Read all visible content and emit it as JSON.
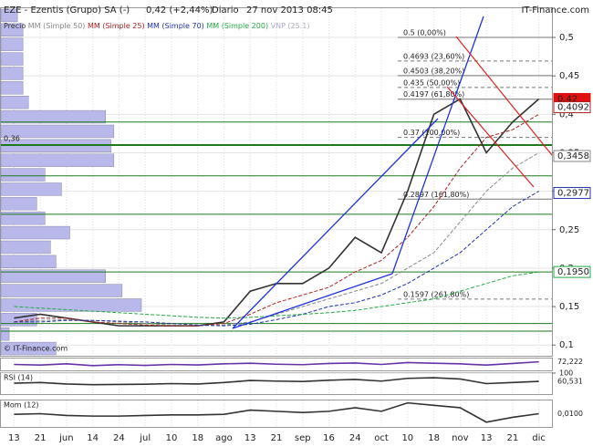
{
  "header": {
    "title": "EZE - Ezentis (Grupo) SA (-)",
    "quote": "0,42 (+2,44%)",
    "period": "Diario",
    "datetime": "27 nov 2013 08:45",
    "site": "IT-Finance.com",
    "copyright": "© IT-Finance.com"
  },
  "chart_data": [
    {
      "type": "line",
      "categories": [
        "13",
        "21",
        "jun",
        "14",
        "24",
        "jul",
        "10",
        "18",
        "ago",
        "13",
        "21",
        "sep",
        "16",
        "24",
        "oct",
        "10",
        "18",
        "nov",
        "13",
        "21",
        "dic"
      ],
      "ylim": [
        0.086,
        0.538
      ],
      "yticks": [
        {
          "value": 0.1,
          "label": "0,1"
        },
        {
          "value": 0.15,
          "label": "0,15"
        },
        {
          "value": 0.2,
          "label": "0,2"
        },
        {
          "value": 0.25,
          "label": "0,25"
        },
        {
          "value": 0.3,
          "label": "0,3"
        },
        {
          "value": 0.35,
          "label": "0,35"
        },
        {
          "value": 0.4,
          "label": "0,4"
        },
        {
          "value": 0.45,
          "label": "0,45"
        },
        {
          "value": 0.5,
          "label": "0,5"
        }
      ],
      "series": [
        {
          "name": "Precio",
          "color": "#333333",
          "values": [
            0.135,
            0.14,
            0.135,
            0.13,
            0.125,
            0.125,
            0.125,
            0.125,
            0.13,
            0.17,
            0.18,
            0.18,
            0.2,
            0.24,
            0.22,
            0.3,
            0.4,
            0.42,
            0.35,
            0.39,
            0.42
          ]
        },
        {
          "name": "MM (Simple 50)",
          "color": "#888888",
          "values": [
            0.13,
            0.132,
            0.133,
            0.132,
            0.13,
            0.128,
            0.126,
            0.125,
            0.126,
            0.13,
            0.14,
            0.15,
            0.16,
            0.17,
            0.18,
            0.2,
            0.22,
            0.26,
            0.3,
            0.33,
            0.35
          ]
        },
        {
          "name": "MM (Simple 25)",
          "color": "#aa2222",
          "values": [
            0.13,
            0.135,
            0.135,
            0.13,
            0.128,
            0.126,
            0.125,
            0.125,
            0.128,
            0.14,
            0.155,
            0.165,
            0.175,
            0.195,
            0.21,
            0.24,
            0.28,
            0.33,
            0.37,
            0.38,
            0.4
          ]
        },
        {
          "name": "MM (Simple 70)",
          "color": "#2233aa",
          "values": [
            0.13,
            0.13,
            0.132,
            0.132,
            0.131,
            0.13,
            0.128,
            0.126,
            0.125,
            0.127,
            0.133,
            0.14,
            0.15,
            0.155,
            0.165,
            0.18,
            0.2,
            0.22,
            0.25,
            0.28,
            0.3
          ]
        },
        {
          "name": "MM (Simple 200)",
          "color": "#22aa44",
          "values": [
            0.15,
            0.148,
            0.146,
            0.144,
            0.142,
            0.14,
            0.138,
            0.136,
            0.135,
            0.136,
            0.138,
            0.14,
            0.142,
            0.145,
            0.15,
            0.155,
            0.16,
            0.17,
            0.18,
            0.19,
            0.195
          ]
        }
      ],
      "volume_profile": {
        "name": "VNP (25.1)",
        "color": "#b8b8ea",
        "xlim": [
          0,
          100
        ],
        "values": [
          3,
          4,
          4,
          4,
          4,
          4,
          5,
          19,
          20.5,
          20,
          20.5,
          8,
          11,
          6.5,
          8,
          12.5,
          9,
          10,
          19,
          22,
          25.5,
          6.5,
          1.5,
          10
        ]
      },
      "levels": {
        "color": "#1d7a1d",
        "values": [
          0.36,
          0.39,
          0.32,
          0.27,
          0.195,
          0.128,
          0.118
        ]
      },
      "level_label": {
        "value": 0.36,
        "label": "0,36"
      },
      "fibonacci": [
        {
          "value": 0.5,
          "label": "0.5 (0,00%)"
        },
        {
          "value": 0.4693,
          "label": "0.4693 (23,60%)"
        },
        {
          "value": 0.4503,
          "label": "0.4503 (38,20%)"
        },
        {
          "value": 0.435,
          "label": "0.435 (50,00%)"
        },
        {
          "value": 0.4197,
          "label": "0.4197 (61,80%)"
        },
        {
          "value": 0.37,
          "label": "0.37 (100,00%)"
        },
        {
          "value": 0.2897,
          "label": "0.2897 (161,80%)"
        },
        {
          "value": 0.1597,
          "label": "0.1597 (261,80%)"
        }
      ],
      "markers": [
        {
          "value": 0.42,
          "label": "0,42",
          "color": "#e01010"
        },
        {
          "value": 0.4092,
          "label": "0,4092",
          "color": "#aa2222"
        },
        {
          "value": 0.3458,
          "label": "0,3458",
          "color": "#888888"
        },
        {
          "value": 0.2977,
          "label": "0,2977",
          "color": "#2233aa"
        },
        {
          "value": 0.195,
          "label": "0,1950",
          "color": "#22aa44"
        }
      ]
    },
    {
      "type": "line",
      "ylim": [
        0,
        100
      ],
      "series": [
        {
          "color": "#6633aa",
          "values": [
            50,
            45,
            55,
            40,
            48,
            42,
            50,
            46,
            55,
            60,
            52,
            48,
            58,
            62,
            50,
            66,
            60,
            55,
            45,
            58,
            72.222
          ]
        }
      ],
      "markers": [
        {
          "value": 72.222,
          "label": "72,222",
          "color": "#222222"
        }
      ]
    },
    {
      "type": "line",
      "title": "RSI (14)",
      "ylim": [
        0,
        100
      ],
      "yticks": [
        100
      ],
      "series": [
        {
          "color": "#333333",
          "values": [
            52,
            55,
            48,
            45,
            46,
            47,
            50,
            48,
            55,
            65,
            62,
            60,
            66,
            70,
            62,
            75,
            78,
            72,
            50,
            55,
            60.531
          ]
        }
      ],
      "markers": [
        {
          "value": 60.531,
          "label": "60,531",
          "color": "#222222"
        }
      ]
    },
    {
      "type": "line",
      "title": "Mom (12)",
      "ylim": [
        -0.1,
        0.12
      ],
      "series": [
        {
          "color": "#333333",
          "values": [
            0.005,
            0.01,
            -0.005,
            -0.01,
            -0.01,
            -0.005,
            0,
            0,
            0.005,
            0.04,
            0.03,
            0.02,
            0.03,
            0.06,
            0.03,
            0.1,
            0.08,
            0.06,
            -0.06,
            -0.02,
            0.01
          ]
        }
      ],
      "markers": [
        {
          "value": 0.01,
          "label": "0,0100",
          "color": "#222222"
        }
      ]
    }
  ]
}
